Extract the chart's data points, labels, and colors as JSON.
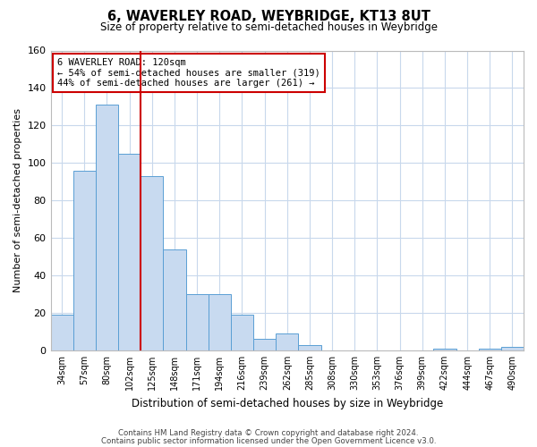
{
  "title": "6, WAVERLEY ROAD, WEYBRIDGE, KT13 8UT",
  "subtitle": "Size of property relative to semi-detached houses in Weybridge",
  "xlabel": "Distribution of semi-detached houses by size in Weybridge",
  "ylabel": "Number of semi-detached properties",
  "bar_labels": [
    "34sqm",
    "57sqm",
    "80sqm",
    "102sqm",
    "125sqm",
    "148sqm",
    "171sqm",
    "194sqm",
    "216sqm",
    "239sqm",
    "262sqm",
    "285sqm",
    "308sqm",
    "330sqm",
    "353sqm",
    "376sqm",
    "399sqm",
    "422sqm",
    "444sqm",
    "467sqm",
    "490sqm"
  ],
  "bar_values": [
    19,
    96,
    131,
    105,
    93,
    54,
    30,
    30,
    19,
    6,
    9,
    3,
    0,
    0,
    0,
    0,
    0,
    1,
    0,
    1,
    2
  ],
  "bar_color": "#c8daf0",
  "bar_edge_color": "#5a9fd4",
  "vline_index": 4,
  "vline_color": "#cc0000",
  "annotation_title": "6 WAVERLEY ROAD: 120sqm",
  "annotation_line1": "← 54% of semi-detached houses are smaller (319)",
  "annotation_line2": "44% of semi-detached houses are larger (261) →",
  "annotation_box_color": "#ffffff",
  "annotation_box_edge": "#cc0000",
  "ylim": [
    0,
    160
  ],
  "yticks": [
    0,
    20,
    40,
    60,
    80,
    100,
    120,
    140,
    160
  ],
  "footer1": "Contains HM Land Registry data © Crown copyright and database right 2024.",
  "footer2": "Contains public sector information licensed under the Open Government Licence v3.0.",
  "bg_color": "#ffffff",
  "grid_color": "#c8d8ec"
}
